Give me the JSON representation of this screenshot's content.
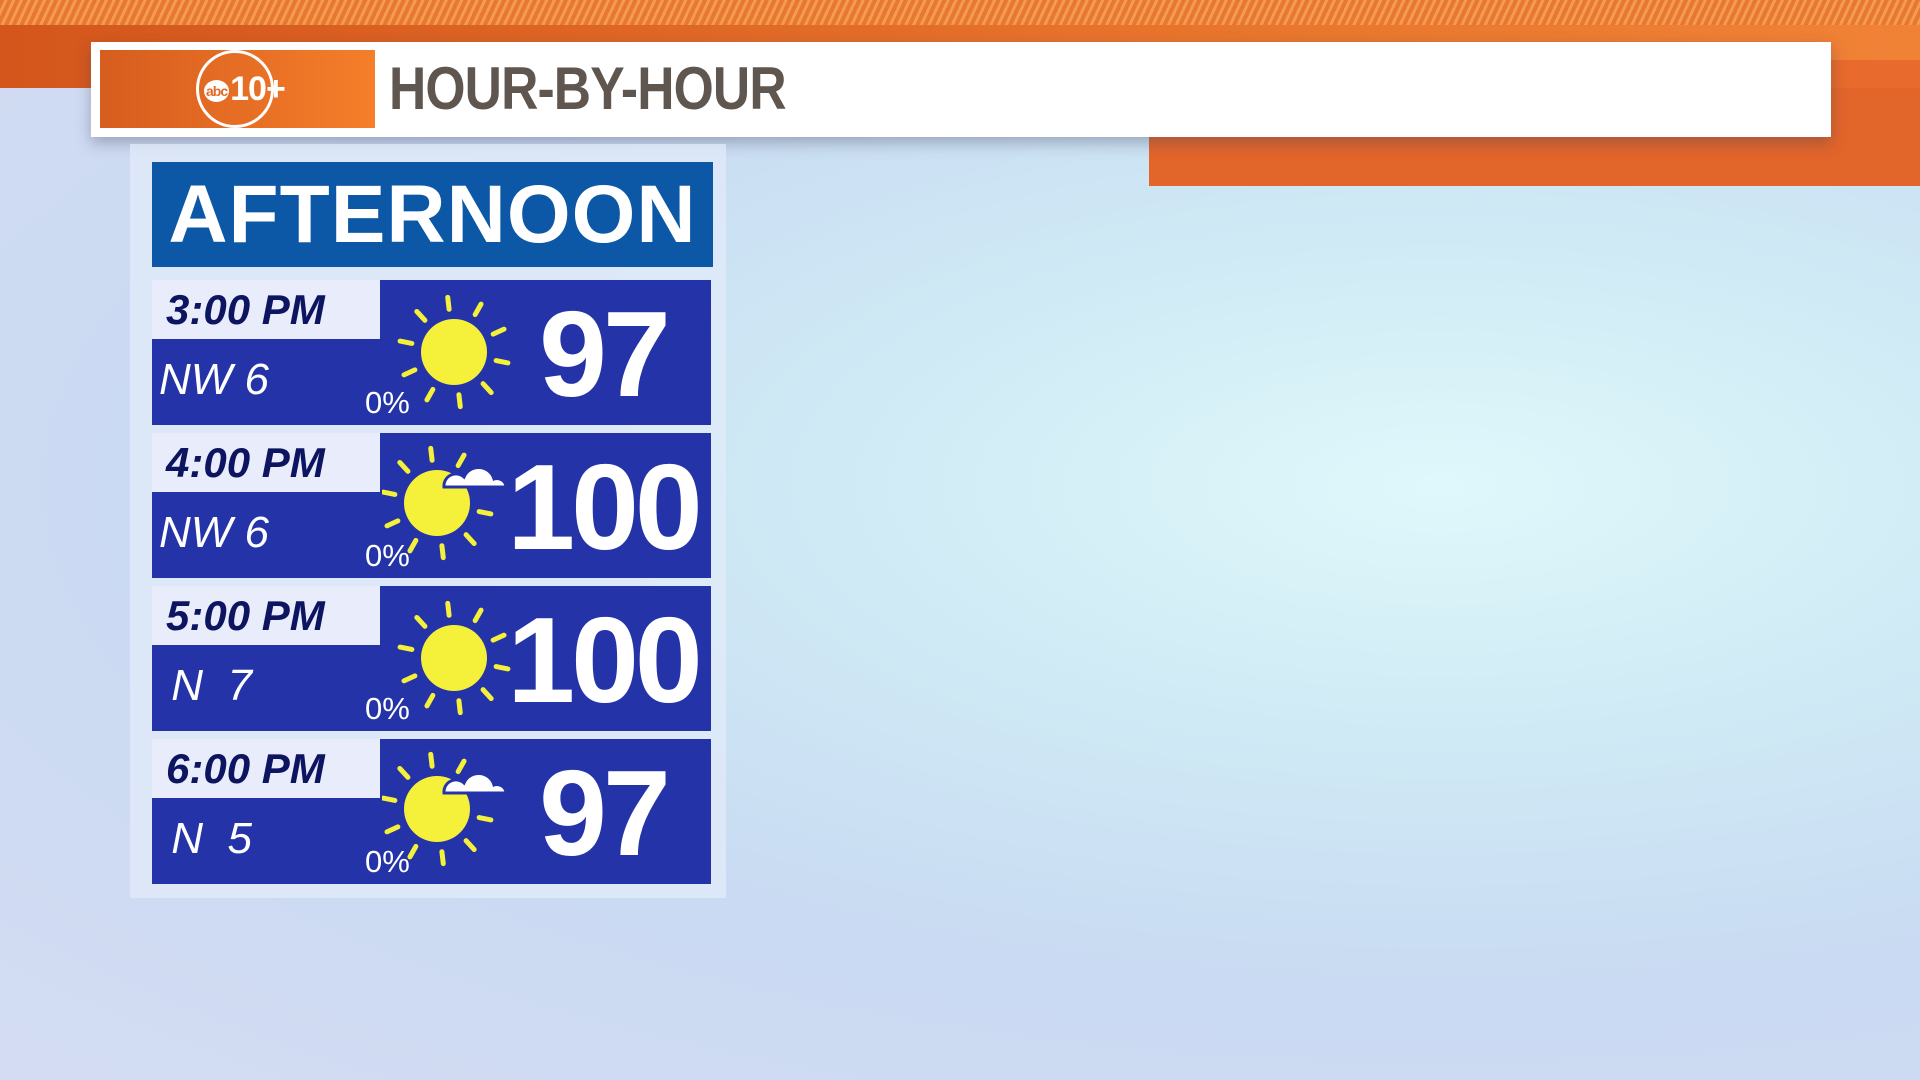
{
  "header": {
    "logo_text": "abc10+",
    "title": "HOUR-BY-HOUR"
  },
  "section": {
    "title": "AFTERNOON"
  },
  "colors": {
    "orange": "#e8742c",
    "header_blue": "#0c58a6",
    "row_blue": "#2533a8",
    "sun": "#f5f03a"
  },
  "rows": [
    {
      "time": "3:00 PM",
      "wind": "NW 6",
      "precip": "0%",
      "icon": "sunny-icon",
      "temp": "97"
    },
    {
      "time": "4:00 PM",
      "wind": "NW 6",
      "precip": "0%",
      "icon": "mostly-sunny-icon",
      "temp": "100"
    },
    {
      "time": "5:00 PM",
      "wind": " N  7",
      "precip": "0%",
      "icon": "sunny-icon",
      "temp": "100"
    },
    {
      "time": "6:00 PM",
      "wind": " N  5",
      "precip": "0%",
      "icon": "mostly-sunny-icon",
      "temp": "97"
    }
  ]
}
